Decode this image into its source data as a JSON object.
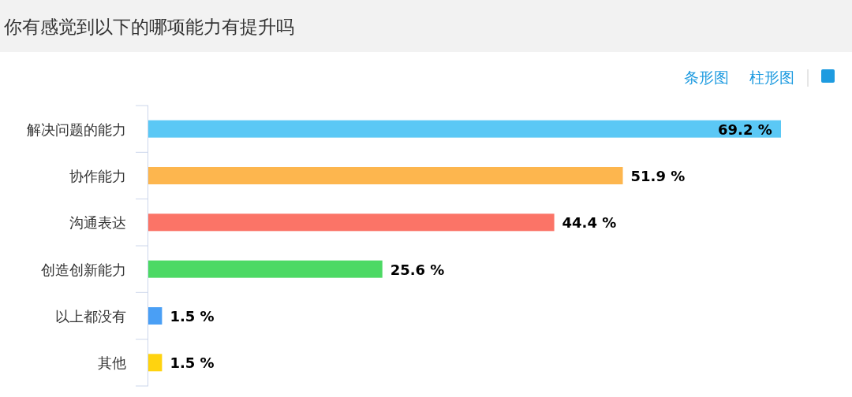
{
  "chart_data": {
    "type": "bar",
    "orientation": "horizontal",
    "title": "你有感觉到以下的哪项能力有提升吗",
    "categories": [
      "解决问题的能力",
      "协作能力",
      "沟通表达",
      "创造创新能力",
      "以上都没有",
      "其他"
    ],
    "values": [
      69.2,
      51.9,
      44.4,
      25.6,
      1.5,
      1.5
    ],
    "colors": [
      "#5bc8f5",
      "#fdb64e",
      "#fb7467",
      "#4cd964",
      "#4a9ff5",
      "#ffd30f"
    ],
    "value_labels": [
      "69.2 %",
      "51.9 %",
      "44.4 %",
      "25.6 %",
      "1.5 %",
      "1.5 %"
    ],
    "annotations": [
      "条形图",
      "柱形图"
    ]
  }
}
